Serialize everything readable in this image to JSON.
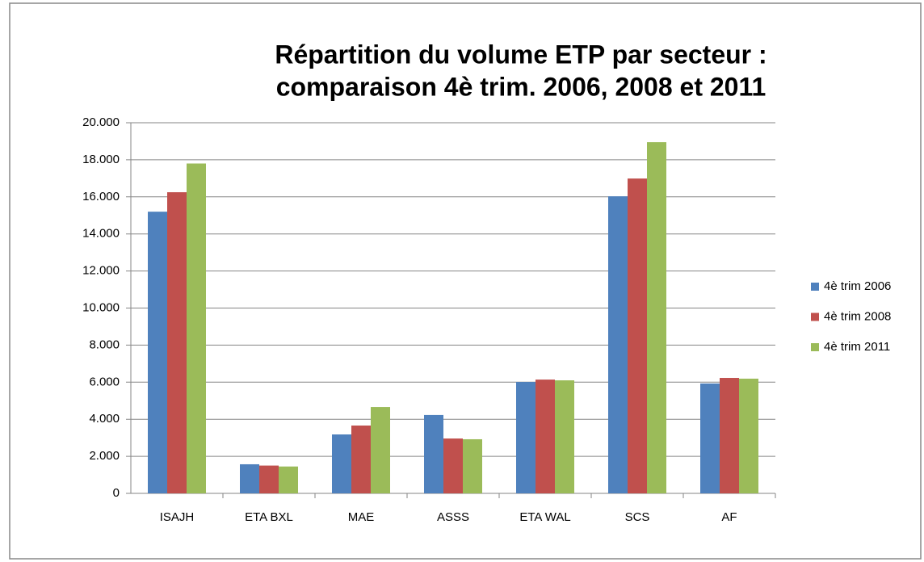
{
  "chart_data": {
    "type": "bar",
    "title": [
      "Répartition du volume ETP par secteur :",
      "comparaison 4è trim. 2006, 2008 et 2011"
    ],
    "categories": [
      "ISAJH",
      "ETA BXL",
      "MAE",
      "ASSS",
      "ETA WAL",
      "SCS",
      "AF"
    ],
    "series": [
      {
        "name": "4è trim 2006",
        "color": "#4f81bd",
        "values": [
          15200,
          1570,
          3180,
          4230,
          6010,
          16030,
          5930
        ]
      },
      {
        "name": "4è trim 2008",
        "color": "#c0504d",
        "values": [
          16250,
          1500,
          3660,
          2960,
          6140,
          16990,
          6230
        ]
      },
      {
        "name": "4è trim 2011",
        "color": "#9bbb59",
        "values": [
          17800,
          1450,
          4660,
          2920,
          6100,
          18950,
          6190
        ]
      }
    ],
    "ylim": [
      0,
      20000
    ],
    "yticks": [
      0,
      {
        "value": 2000,
        "label": "2.000"
      },
      {
        "value": 4000,
        "label": "4.000"
      },
      {
        "value": 6000,
        "label": "6.000"
      },
      {
        "value": 8000,
        "label": "8.000"
      },
      {
        "value": 10000,
        "label": "10.000"
      },
      {
        "value": 12000,
        "label": "12.000"
      },
      {
        "value": 14000,
        "label": "14.000"
      },
      {
        "value": 16000,
        "label": "16.000"
      },
      {
        "value": 18000,
        "label": "18.000"
      },
      {
        "value": 20000,
        "label": "20.000"
      }
    ],
    "grid": true,
    "legend": "right"
  }
}
